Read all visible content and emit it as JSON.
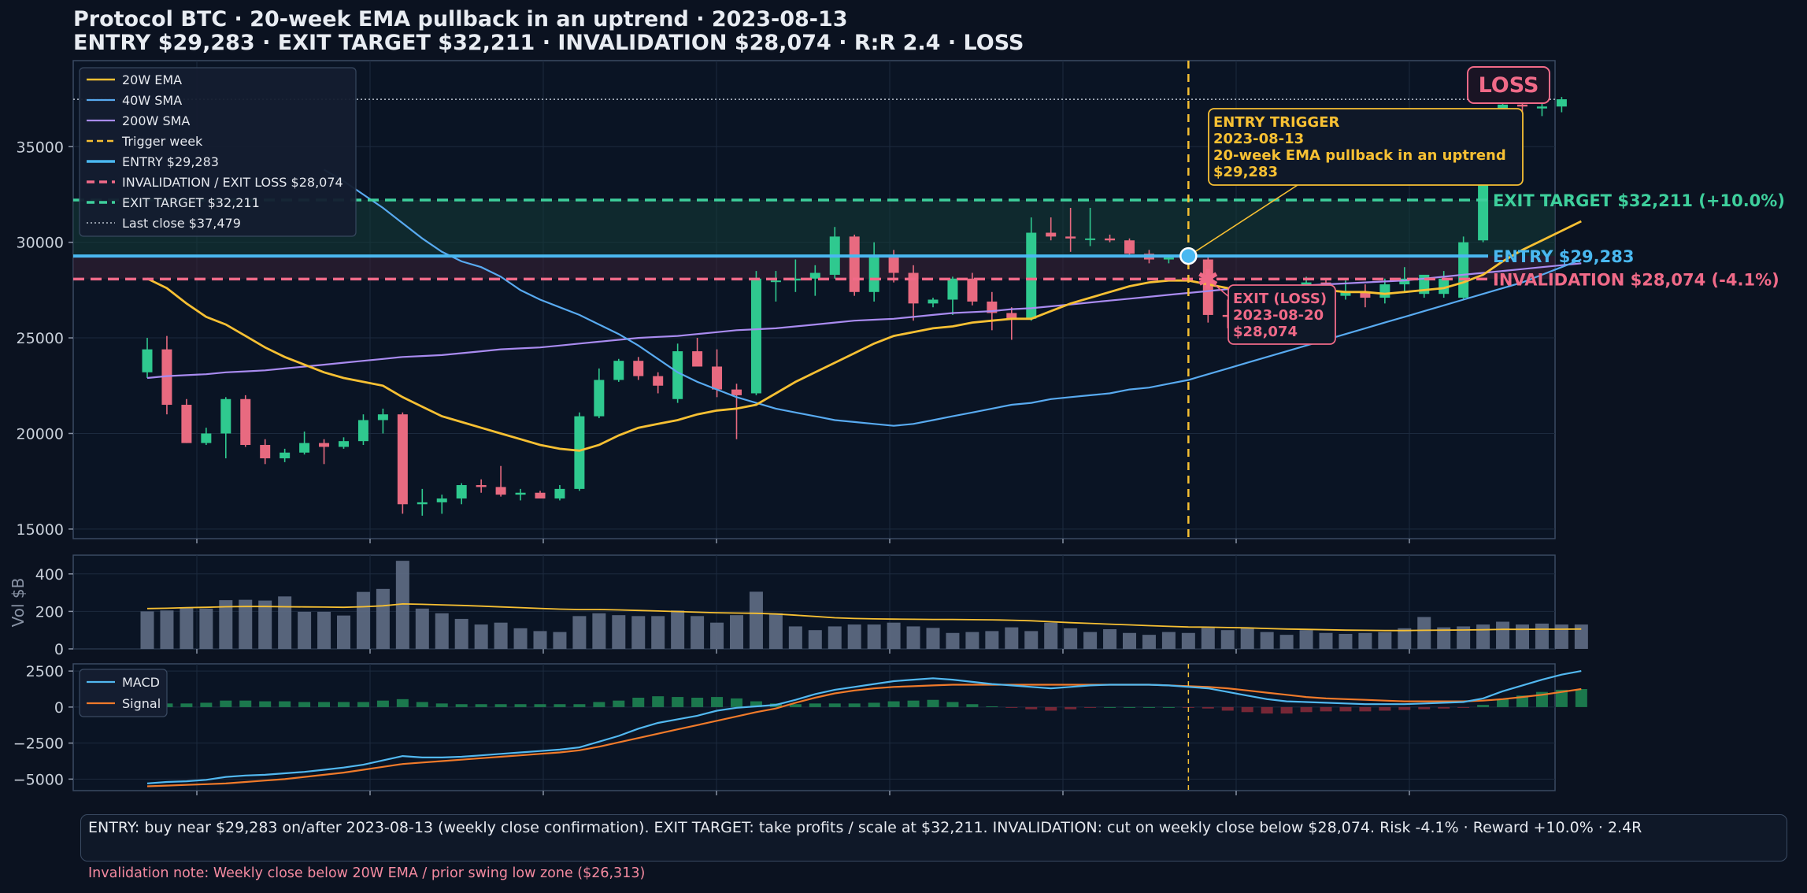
{
  "title": "Protocol BTC · 20-week EMA pullback in an uptrend · 2023-08-13",
  "subtitle": "ENTRY $29,283   ·   EXIT TARGET $32,211   ·   INVALIDATION $28,074   ·   R:R 2.4   ·   LOSS",
  "badge": "LOSS",
  "colors": {
    "background": "#0b1220",
    "panel": "#0a1424",
    "up": "#2fc98f",
    "down": "#e86a80",
    "ema20": "#f7c033",
    "sma40": "#58aaf0",
    "sma200": "#a98bf0",
    "entry": "#4ab8f0",
    "invalidation": "#f06a88",
    "target": "#3ecf9c",
    "trigger": "#f7c033",
    "macd": "#52b8f0",
    "signal": "#f07a2a",
    "volume": "#5f6d85"
  },
  "levels": {
    "entry": 29283,
    "target": 32211,
    "invalidation": 28074,
    "last_close": 37479
  },
  "right_labels": {
    "target": "EXIT TARGET  $32,211  (+10.0%)",
    "entry": "ENTRY  $29,283",
    "invalidation": "INVALIDATION  $28,074  (-4.1%)"
  },
  "annotations": {
    "entry_trigger": [
      "ENTRY TRIGGER",
      "2023-08-13",
      "20-week EMA pullback in an uptrend",
      "$29,283"
    ],
    "exit_loss": [
      "EXIT (LOSS)",
      "2023-08-20",
      "$28,074"
    ]
  },
  "legend_price": [
    "20W EMA",
    "40W SMA",
    "200W SMA",
    "Trigger week",
    "ENTRY $29,283",
    "INVALIDATION / EXIT LOSS $28,074",
    "EXIT TARGET $32,211",
    "Last close $37,479"
  ],
  "legend_macd": [
    "MACD",
    "Signal"
  ],
  "volume_label": "Vol $B",
  "footer": {
    "text": "ENTRY: buy near $29,283 on/after 2023-08-13 (weekly close confirmation).   EXIT TARGET: take profits / scale at $32,211.   INVALIDATION: cut on weekly close below $28,074.   Risk -4.1% · Reward +10.0% · 2.4R",
    "note": "Invalidation note: Weekly close below 20W EMA / prior swing low zone ($26,313)"
  },
  "chart_data": {
    "type": "candlestick",
    "trigger_index": 53,
    "exit_index": 54,
    "price_axis": {
      "ylim": [
        14500,
        39500
      ],
      "ticks": [
        15000,
        20000,
        25000,
        30000,
        35000
      ]
    },
    "volume_axis": {
      "ylim": [
        0,
        500
      ],
      "ticks": [
        0,
        200,
        400
      ]
    },
    "macd_axis": {
      "ylim": [
        -5800,
        3000
      ],
      "ticks": [
        2500,
        0,
        -2500,
        -5000
      ]
    },
    "ohlc": [
      [
        23200,
        25000,
        22900,
        24400
      ],
      [
        24400,
        25100,
        21000,
        21500
      ],
      [
        21500,
        21800,
        19500,
        19500
      ],
      [
        19500,
        20300,
        19400,
        20000
      ],
      [
        20000,
        21900,
        18700,
        21800
      ],
      [
        21800,
        22000,
        19300,
        19400
      ],
      [
        19400,
        19700,
        18400,
        18700
      ],
      [
        18700,
        19200,
        18500,
        19000
      ],
      [
        19000,
        20100,
        18900,
        19500
      ],
      [
        19500,
        19700,
        18400,
        19300
      ],
      [
        19300,
        19800,
        19200,
        19600
      ],
      [
        19600,
        21000,
        19400,
        20700
      ],
      [
        20700,
        21300,
        20000,
        21000
      ],
      [
        21000,
        21100,
        15800,
        16300
      ],
      [
        16300,
        17100,
        15700,
        16400
      ],
      [
        16400,
        16800,
        15800,
        16600
      ],
      [
        16600,
        17400,
        16300,
        17300
      ],
      [
        17300,
        17600,
        16900,
        17200
      ],
      [
        17200,
        18300,
        16700,
        16800
      ],
      [
        16800,
        17100,
        16500,
        16900
      ],
      [
        16900,
        17000,
        16600,
        16600
      ],
      [
        16600,
        17300,
        16500,
        17100
      ],
      [
        17100,
        21100,
        17000,
        20900
      ],
      [
        20900,
        23400,
        20800,
        22800
      ],
      [
        22800,
        23900,
        22700,
        23800
      ],
      [
        23800,
        24000,
        22800,
        23000
      ],
      [
        23000,
        23200,
        22100,
        22500
      ],
      [
        21800,
        24700,
        21600,
        24300
      ],
      [
        24300,
        25000,
        23600,
        23500
      ],
      [
        23500,
        24400,
        21900,
        22300
      ],
      [
        22300,
        22600,
        19700,
        22000
      ],
      [
        22100,
        28500,
        22000,
        28100
      ],
      [
        28000,
        28500,
        26900,
        28000
      ],
      [
        28000,
        29100,
        27400,
        28100
      ],
      [
        28100,
        28800,
        27200,
        28400
      ],
      [
        28300,
        30800,
        28100,
        30300
      ],
      [
        30300,
        30400,
        27200,
        27400
      ],
      [
        27400,
        30000,
        26900,
        29200
      ],
      [
        29200,
        29600,
        27900,
        28400
      ],
      [
        28400,
        28800,
        25900,
        26800
      ],
      [
        26800,
        27100,
        26600,
        27000
      ],
      [
        27000,
        28200,
        26200,
        28100
      ],
      [
        28100,
        28400,
        26700,
        26900
      ],
      [
        26900,
        27400,
        25400,
        26300
      ],
      [
        26300,
        26600,
        24900,
        26000
      ],
      [
        26000,
        31300,
        25900,
        30500
      ],
      [
        30500,
        31300,
        30100,
        30300
      ],
      [
        30300,
        31800,
        29500,
        30200
      ],
      [
        30200,
        31800,
        29800,
        30200
      ],
      [
        30200,
        30400,
        30000,
        30100
      ],
      [
        30100,
        30200,
        29200,
        29400
      ],
      [
        29400,
        29600,
        28900,
        29100
      ],
      [
        29100,
        29300,
        28900,
        29200
      ],
      [
        29200,
        29300,
        28800,
        29100
      ],
      [
        29100,
        29300,
        25800,
        26200
      ],
      [
        26200,
        27000,
        25500,
        26100
      ],
      [
        26100,
        26800,
        26000,
        26600
      ],
      [
        26600,
        27600,
        26400,
        27100
      ],
      [
        27100,
        27600,
        26600,
        27000
      ],
      [
        27000,
        28200,
        26800,
        27900
      ],
      [
        27900,
        28100,
        26800,
        27200
      ],
      [
        27200,
        28000,
        27000,
        27400
      ],
      [
        27400,
        27800,
        26600,
        27100
      ],
      [
        27100,
        28100,
        26800,
        27800
      ],
      [
        27800,
        28700,
        27400,
        28100
      ],
      [
        27300,
        28100,
        27100,
        28300
      ],
      [
        27300,
        28500,
        27100,
        28100
      ],
      [
        27100,
        30300,
        27000,
        30000
      ],
      [
        30100,
        36000,
        30000,
        35000
      ],
      [
        35000,
        37600,
        35000,
        37200
      ],
      [
        37200,
        38000,
        36800,
        37100
      ],
      [
        37000,
        37600,
        36600,
        37100
      ],
      [
        37100,
        37600,
        36800,
        37479
      ]
    ],
    "ema20": [
      28100,
      27600,
      26800,
      26100,
      25700,
      25100,
      24500,
      24000,
      23600,
      23200,
      22900,
      22700,
      22500,
      21900,
      21400,
      20900,
      20600,
      20300,
      20000,
      19700,
      19400,
      19200,
      19100,
      19400,
      19900,
      20300,
      20500,
      20700,
      21000,
      21200,
      21300,
      21500,
      22100,
      22700,
      23200,
      23700,
      24200,
      24700,
      25100,
      25300,
      25500,
      25600,
      25800,
      25900,
      26000,
      26000,
      26400,
      26800,
      27100,
      27400,
      27700,
      27900,
      28000,
      28000,
      27800,
      27600,
      27500,
      27500,
      27500,
      27500,
      27500,
      27400,
      27400,
      27300,
      27400,
      27500,
      27600,
      27900,
      28300,
      29000,
      29600,
      30100,
      30600,
      31100
    ],
    "sma40": [
      null,
      null,
      null,
      null,
      null,
      null,
      null,
      null,
      null,
      33800,
      33200,
      32500,
      31800,
      31000,
      30200,
      29500,
      29000,
      28700,
      28200,
      27500,
      27000,
      26600,
      26200,
      25700,
      25200,
      24600,
      23900,
      23200,
      22700,
      22300,
      21900,
      21600,
      21300,
      21100,
      20900,
      20700,
      20600,
      20500,
      20400,
      20500,
      20700,
      20900,
      21100,
      21300,
      21500,
      21600,
      21800,
      21900,
      22000,
      22100,
      22300,
      22400,
      22600,
      22800,
      23100,
      23400,
      23700,
      24000,
      24300,
      24600,
      24900,
      25200,
      25500,
      25800,
      26100,
      26400,
      26700,
      27000,
      27300,
      27600,
      27900,
      28300,
      28700,
      29100
    ],
    "sma200": [
      22900,
      23000,
      23050,
      23100,
      23200,
      23250,
      23300,
      23400,
      23500,
      23600,
      23700,
      23800,
      23900,
      24000,
      24050,
      24100,
      24200,
      24300,
      24400,
      24450,
      24500,
      24600,
      24700,
      24800,
      24900,
      25000,
      25050,
      25100,
      25200,
      25300,
      25400,
      25450,
      25500,
      25600,
      25700,
      25800,
      25900,
      25950,
      26000,
      26100,
      26200,
      26300,
      26350,
      26400,
      26500,
      26550,
      26650,
      26750,
      26850,
      26950,
      27050,
      27150,
      27250,
      27350,
      27450,
      27550,
      27600,
      27650,
      27700,
      27750,
      27800,
      27850,
      27900,
      27950,
      28000,
      28100,
      28200,
      28300,
      28400,
      28500,
      28600,
      28700,
      28800,
      28900
    ],
    "volume": [
      200,
      205,
      218,
      215,
      260,
      262,
      258,
      280,
      198,
      198,
      178,
      304,
      320,
      470,
      215,
      190,
      160,
      130,
      140,
      110,
      95,
      90,
      175,
      190,
      180,
      175,
      175,
      205,
      175,
      140,
      180,
      305,
      190,
      120,
      100,
      120,
      130,
      130,
      140,
      120,
      112,
      85,
      90,
      95,
      115,
      95,
      140,
      110,
      90,
      105,
      85,
      75,
      90,
      85,
      112,
      100,
      110,
      90,
      75,
      100,
      85,
      80,
      85,
      90,
      110,
      170,
      115,
      120,
      130,
      145,
      130,
      135,
      130,
      130
    ],
    "volume_ma": [
      215,
      217,
      220,
      222,
      225,
      226,
      226,
      225,
      224,
      223,
      222,
      225,
      230,
      240,
      238,
      235,
      232,
      228,
      224,
      220,
      216,
      212,
      210,
      210,
      208,
      205,
      202,
      199,
      196,
      193,
      191,
      190,
      186,
      180,
      173,
      166,
      162,
      160,
      159,
      158,
      157,
      157,
      156,
      155,
      153,
      150,
      145,
      140,
      136,
      132,
      128,
      124,
      120,
      117,
      116,
      114,
      112,
      109,
      106,
      104,
      102,
      100,
      99,
      98,
      98,
      99,
      100,
      101,
      102,
      104,
      104,
      105,
      105,
      106
    ],
    "macd": [
      -5300,
      -5200,
      -5150,
      -5050,
      -4850,
      -4750,
      -4700,
      -4600,
      -4500,
      -4350,
      -4200,
      -4000,
      -3700,
      -3400,
      -3500,
      -3500,
      -3450,
      -3350,
      -3250,
      -3150,
      -3050,
      -2950,
      -2800,
      -2400,
      -2000,
      -1500,
      -1100,
      -850,
      -600,
      -250,
      -50,
      50,
      150,
      500,
      900,
      1200,
      1400,
      1600,
      1800,
      1900,
      2000,
      1900,
      1750,
      1600,
      1500,
      1400,
      1300,
      1400,
      1500,
      1550,
      1550,
      1550,
      1500,
      1400,
      1300,
      1050,
      800,
      550,
      400,
      350,
      300,
      250,
      200,
      200,
      200,
      250,
      300,
      350,
      600,
      1100,
      1500,
      1900,
      2250,
      2500
    ],
    "signal": [
      -5500,
      -5450,
      -5400,
      -5350,
      -5300,
      -5200,
      -5100,
      -5000,
      -4850,
      -4700,
      -4550,
      -4350,
      -4150,
      -3950,
      -3850,
      -3750,
      -3650,
      -3550,
      -3450,
      -3350,
      -3250,
      -3150,
      -3000,
      -2750,
      -2450,
      -2150,
      -1850,
      -1550,
      -1250,
      -950,
      -650,
      -350,
      -100,
      300,
      650,
      950,
      1150,
      1300,
      1400,
      1450,
      1500,
      1550,
      1550,
      1550,
      1550,
      1550,
      1550,
      1550,
      1550,
      1550,
      1550,
      1550,
      1500,
      1450,
      1400,
      1300,
      1150,
      1000,
      850,
      700,
      600,
      550,
      500,
      450,
      400,
      400,
      400,
      400,
      450,
      550,
      700,
      850,
      1050,
      1250
    ]
  }
}
